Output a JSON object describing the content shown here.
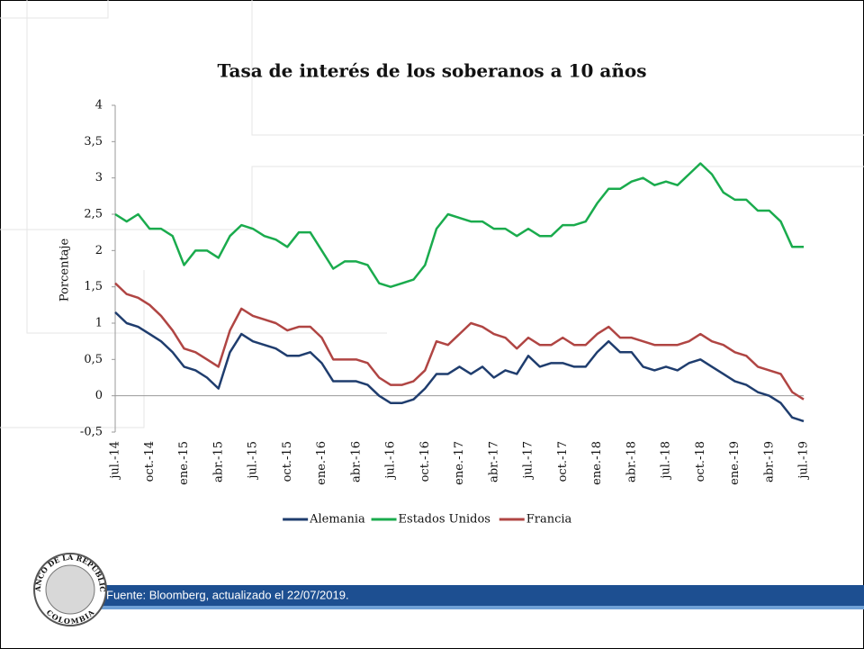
{
  "chart_data": {
    "type": "line",
    "title": "Tasa de interés de los soberanos a 10 años",
    "y_label": "Porcentaje",
    "categories": [
      "jul.-14",
      null,
      null,
      "oct.-14",
      null,
      null,
      "ene.-15",
      null,
      null,
      "abr.-15",
      null,
      null,
      "jul.-15",
      null,
      null,
      "oct.-15",
      null,
      null,
      "ene.-16",
      null,
      null,
      "abr.-16",
      null,
      null,
      "jul.-16",
      null,
      null,
      "oct.-16",
      null,
      null,
      "ene.-17",
      null,
      null,
      "abr.-17",
      null,
      null,
      "jul.-17",
      null,
      null,
      "oct.-17",
      null,
      null,
      "ene.-18",
      null,
      null,
      "abr.-18",
      null,
      null,
      "jul.-18",
      null,
      null,
      "oct.-18",
      null,
      null,
      "ene.-19",
      null,
      null,
      "abr.-19",
      null,
      null,
      "jul.-19"
    ],
    "series": [
      {
        "name": "Alemania",
        "color": "#1f3d6e",
        "values": [
          1.15,
          1.0,
          0.95,
          0.85,
          0.75,
          0.6,
          0.4,
          0.35,
          0.25,
          0.1,
          0.6,
          0.85,
          0.75,
          0.7,
          0.65,
          0.55,
          0.55,
          0.6,
          0.45,
          0.2,
          0.2,
          0.2,
          0.15,
          0.0,
          -0.1,
          -0.1,
          -0.05,
          0.1,
          0.3,
          0.3,
          0.4,
          0.3,
          0.4,
          0.25,
          0.35,
          0.3,
          0.55,
          0.4,
          0.45,
          0.45,
          0.4,
          0.4,
          0.6,
          0.75,
          0.6,
          0.6,
          0.4,
          0.35,
          0.4,
          0.35,
          0.45,
          0.5,
          0.4,
          0.3,
          0.2,
          0.15,
          0.05,
          0.0,
          -0.1,
          -0.3,
          -0.35
        ]
      },
      {
        "name": "Estados Unidos",
        "color": "#1aab4d",
        "values": [
          2.5,
          2.4,
          2.5,
          2.3,
          2.3,
          2.2,
          1.8,
          2.0,
          2.0,
          1.9,
          2.2,
          2.35,
          2.3,
          2.2,
          2.15,
          2.05,
          2.25,
          2.25,
          2.0,
          1.75,
          1.85,
          1.85,
          1.8,
          1.55,
          1.5,
          1.55,
          1.6,
          1.8,
          2.3,
          2.5,
          2.45,
          2.4,
          2.4,
          2.3,
          2.3,
          2.2,
          2.3,
          2.2,
          2.2,
          2.35,
          2.35,
          2.4,
          2.65,
          2.85,
          2.85,
          2.95,
          3.0,
          2.9,
          2.95,
          2.9,
          3.05,
          3.2,
          3.05,
          2.8,
          2.7,
          2.7,
          2.55,
          2.55,
          2.4,
          2.05,
          2.05
        ]
      },
      {
        "name": "Francia",
        "color": "#b04543",
        "values": [
          1.55,
          1.4,
          1.35,
          1.25,
          1.1,
          0.9,
          0.65,
          0.6,
          0.5,
          0.4,
          0.9,
          1.2,
          1.1,
          1.05,
          1.0,
          0.9,
          0.95,
          0.95,
          0.8,
          0.5,
          0.5,
          0.5,
          0.45,
          0.25,
          0.15,
          0.15,
          0.2,
          0.35,
          0.75,
          0.7,
          0.85,
          1.0,
          0.95,
          0.85,
          0.8,
          0.65,
          0.8,
          0.7,
          0.7,
          0.8,
          0.7,
          0.7,
          0.85,
          0.95,
          0.8,
          0.8,
          0.75,
          0.7,
          0.7,
          0.7,
          0.75,
          0.85,
          0.75,
          0.7,
          0.6,
          0.55,
          0.4,
          0.35,
          0.3,
          0.05,
          -0.05
        ]
      }
    ],
    "ylim": [
      -0.5,
      4
    ],
    "yticks": [
      {
        "value": -0.5,
        "label": "-0,5"
      },
      0,
      {
        "value": 0.5,
        "label": "0,5"
      },
      1,
      {
        "value": 1.5,
        "label": "1,5"
      },
      2,
      {
        "value": 2.5,
        "label": "2,5"
      },
      3,
      {
        "value": 3.5,
        "label": "3,5"
      },
      4
    ],
    "grid": false,
    "legend": "bottom"
  },
  "footer": {
    "source": "Fuente: Bloomberg, actualizado el 22/07/2019."
  },
  "logo": {
    "top_text": "BANCO DE LA REPÚBLICA",
    "bottom_text": "COLOMBIA"
  }
}
